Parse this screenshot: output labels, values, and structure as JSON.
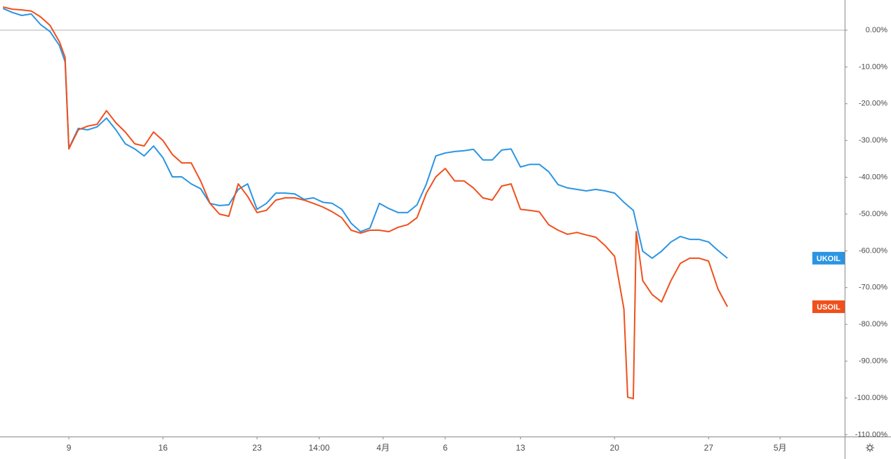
{
  "chart_data": {
    "type": "line",
    "xlim": [
      -3.66,
      41.23
    ],
    "ylim": [
      -110.5,
      8.2
    ],
    "xticks": [
      {
        "value": 0,
        "label": "9"
      },
      {
        "value": 5,
        "label": "16"
      },
      {
        "value": 10,
        "label": "23"
      },
      {
        "value": 13.3,
        "label": "14:00"
      },
      {
        "value": 16.7,
        "label": "4月"
      },
      {
        "value": 20,
        "label": "6"
      },
      {
        "value": 24,
        "label": "13"
      },
      {
        "value": 29,
        "label": "20"
      },
      {
        "value": 34,
        "label": "27"
      },
      {
        "value": 37.8,
        "label": "5月"
      }
    ],
    "yticks": [
      {
        "value": 0,
        "label": "0.00%"
      },
      {
        "value": -10,
        "label": "-10.00%"
      },
      {
        "value": -20,
        "label": "-20.00%"
      },
      {
        "value": -30,
        "label": "-30.00%"
      },
      {
        "value": -40,
        "label": "-40.00%"
      },
      {
        "value": -50,
        "label": "-50.00%"
      },
      {
        "value": -60,
        "label": "-60.00%"
      },
      {
        "value": -70,
        "label": "-70.00%"
      },
      {
        "value": -80,
        "label": "-80.00%"
      },
      {
        "value": -90,
        "label": "-90.00%"
      },
      {
        "value": -100,
        "label": "-100.00%"
      },
      {
        "value": -110,
        "label": "-110.00%"
      }
    ],
    "grid": false,
    "series": [
      {
        "name": "UKOIL",
        "color": "#2b95e3",
        "x": [
          -3.5,
          -3,
          -2.5,
          -2,
          -1.5,
          -1,
          -0.5,
          -0.2,
          0,
          0.5,
          1,
          1.5,
          2,
          2.5,
          3,
          3.5,
          4,
          4.5,
          5,
          5.5,
          6,
          6.5,
          7,
          7.5,
          8,
          8.5,
          9,
          9.5,
          10,
          10.5,
          11,
          11.5,
          12,
          12.5,
          13,
          13.5,
          14,
          14.5,
          15,
          15.5,
          16,
          16.5,
          17,
          17.5,
          18,
          18.5,
          19,
          19.5,
          20,
          20.5,
          21,
          21.5,
          22,
          22.5,
          23,
          23.5,
          24,
          24.5,
          25,
          25.5,
          26,
          26.5,
          27,
          27.5,
          28,
          28.5,
          29,
          29.5,
          30,
          30.5,
          31,
          31.5,
          32,
          32.5,
          33,
          33.5,
          34,
          34.5,
          35
        ],
        "values": [
          5.9,
          4.8,
          4.0,
          4.4,
          1.5,
          -0.4,
          -4.2,
          -8.6,
          -32.1,
          -26.7,
          -27.1,
          -26.3,
          -23.9,
          -27.1,
          -30.9,
          -32.3,
          -34.2,
          -31.5,
          -34.7,
          -39.9,
          -39.9,
          -41.8,
          -43.1,
          -47.1,
          -47.7,
          -47.5,
          -43.3,
          -41.8,
          -48.7,
          -47.1,
          -44.3,
          -44.3,
          -44.5,
          -46.0,
          -45.6,
          -46.8,
          -47.1,
          -48.7,
          -52.5,
          -54.8,
          -53.8,
          -47.1,
          -48.5,
          -49.6,
          -49.6,
          -47.5,
          -41.8,
          -34.2,
          -33.4,
          -33.0,
          -32.8,
          -32.4,
          -35.3,
          -35.3,
          -32.6,
          -32.3,
          -37.2,
          -36.5,
          -36.5,
          -38.5,
          -42.0,
          -42.9,
          -43.3,
          -43.7,
          -43.3,
          -43.7,
          -44.3,
          -46.8,
          -49.0,
          -60.1,
          -62.0,
          -60.1,
          -57.6,
          -56.1,
          -56.9,
          -56.9,
          -57.6,
          -59.9,
          -62.0
        ]
      },
      {
        "name": "USOIL",
        "color": "#f0501c",
        "x": [
          -3.5,
          -3,
          -2.5,
          -2,
          -1.5,
          -1,
          -0.5,
          -0.2,
          0,
          0.5,
          1,
          1.5,
          2,
          2.5,
          3,
          3.5,
          4,
          4.5,
          5,
          5.5,
          6,
          6.5,
          7,
          7.5,
          8,
          8.5,
          9,
          9.5,
          10,
          10.5,
          11,
          11.5,
          12,
          12.5,
          13,
          13.5,
          14,
          14.5,
          15,
          15.5,
          16,
          16.5,
          17,
          17.5,
          18,
          18.5,
          19,
          19.5,
          20,
          20.5,
          21,
          21.5,
          22,
          22.5,
          23,
          23.5,
          24,
          24.5,
          25,
          25.5,
          26,
          26.5,
          27,
          27.5,
          28,
          28.5,
          29,
          29.5,
          29.7,
          30,
          30.15,
          30.5,
          31,
          31.5,
          32,
          32.5,
          33,
          33.5,
          34,
          34.5,
          35
        ],
        "values": [
          6.3,
          5.7,
          5.5,
          5.2,
          3.6,
          1.3,
          -3.2,
          -7.4,
          -32.3,
          -27.1,
          -26.1,
          -25.6,
          -21.9,
          -25.2,
          -27.7,
          -30.9,
          -31.5,
          -27.7,
          -30.0,
          -33.8,
          -36.1,
          -36.1,
          -41.0,
          -47.1,
          -50.0,
          -50.6,
          -41.8,
          -45.2,
          -49.6,
          -49.0,
          -46.2,
          -45.6,
          -45.6,
          -46.2,
          -47.1,
          -48.1,
          -49.4,
          -51.0,
          -54.4,
          -55.2,
          -54.4,
          -54.4,
          -54.8,
          -53.6,
          -52.9,
          -51.0,
          -44.3,
          -39.9,
          -37.6,
          -41.0,
          -41.0,
          -42.9,
          -45.6,
          -46.2,
          -42.4,
          -41.8,
          -48.7,
          -49.0,
          -49.4,
          -52.9,
          -54.4,
          -55.5,
          -55.0,
          -55.7,
          -56.3,
          -58.6,
          -61.5,
          -75.8,
          -99.8,
          -100.2,
          -54.8,
          -68.1,
          -71.9,
          -73.9,
          -68.1,
          -63.4,
          -62.0,
          -62.0,
          -62.8,
          -70.4,
          -75.2
        ]
      }
    ]
  }
}
